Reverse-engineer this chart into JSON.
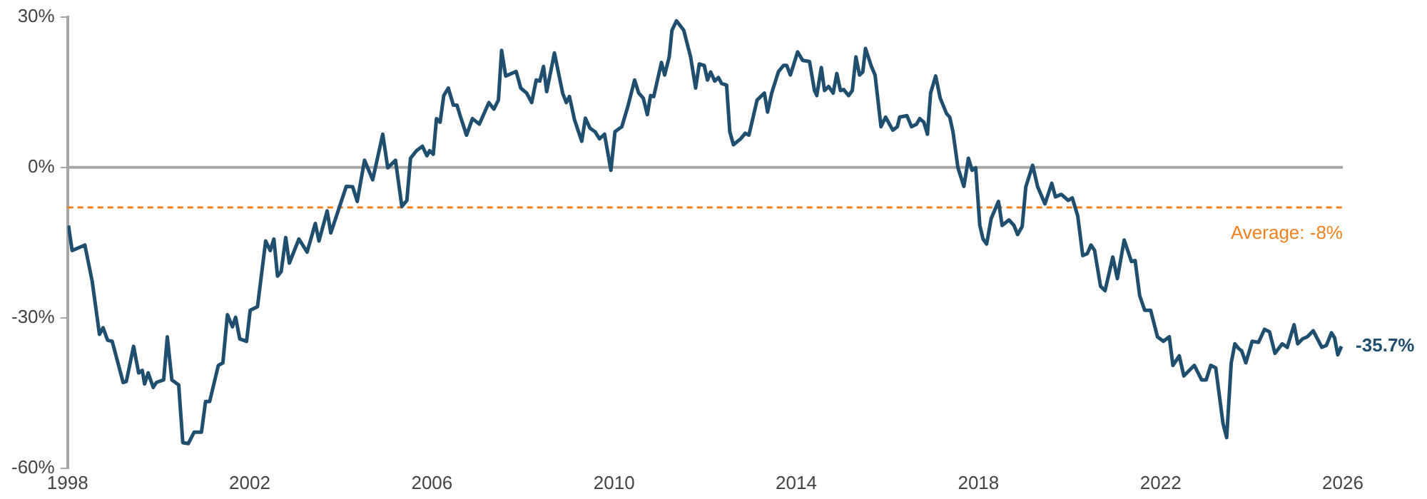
{
  "chart_data": {
    "type": "line",
    "x": [
      1998.02,
      1998.1,
      1998.38,
      1998.54,
      1998.7,
      1998.78,
      1998.88,
      1998.98,
      1999.22,
      1999.29,
      1999.45,
      1999.56,
      1999.64,
      1999.69,
      1999.77,
      1999.88,
      1999.95,
      2000.11,
      2000.19,
      2000.29,
      2000.44,
      2000.53,
      2000.65,
      2000.78,
      2000.94,
      2001.03,
      2001.12,
      2001.31,
      2001.41,
      2001.51,
      2001.62,
      2001.69,
      2001.78,
      2001.93,
      2002.01,
      2002.17,
      2002.35,
      2002.45,
      2002.53,
      2002.61,
      2002.69,
      2002.79,
      2002.87,
      2003.08,
      2003.26,
      2003.44,
      2003.52,
      2003.7,
      2003.78,
      2004.12,
      2004.26,
      2004.36,
      2004.52,
      2004.7,
      2004.92,
      2005.03,
      2005.2,
      2005.34,
      2005.45,
      2005.53,
      2005.66,
      2005.79,
      2005.89,
      2005.95,
      2006.03,
      2006.1,
      2006.18,
      2006.26,
      2006.36,
      2006.47,
      2006.55,
      2006.63,
      2006.76,
      2006.89,
      2007.04,
      2007.25,
      2007.36,
      2007.46,
      2007.53,
      2007.62,
      2007.85,
      2007.95,
      2008.08,
      2008.19,
      2008.29,
      2008.37,
      2008.45,
      2008.52,
      2008.69,
      2008.87,
      2008.95,
      2009.02,
      2009.13,
      2009.29,
      2009.37,
      2009.47,
      2009.58,
      2009.68,
      2009.79,
      2009.93,
      2010.02,
      2010.17,
      2010.31,
      2010.45,
      2010.54,
      2010.64,
      2010.73,
      2010.8,
      2010.87,
      2011.04,
      2011.11,
      2011.21,
      2011.27,
      2011.37,
      2011.53,
      2011.68,
      2011.79,
      2011.87,
      2011.98,
      2012.05,
      2012.12,
      2012.21,
      2012.29,
      2012.36,
      2012.47,
      2012.54,
      2012.62,
      2012.78,
      2012.88,
      2012.96,
      2013.14,
      2013.3,
      2013.37,
      2013.46,
      2013.61,
      2013.72,
      2013.79,
      2013.87,
      2014.03,
      2014.14,
      2014.29,
      2014.4,
      2014.45,
      2014.55,
      2014.62,
      2014.71,
      2014.81,
      2014.89,
      2014.97,
      2015.04,
      2015.15,
      2015.23,
      2015.31,
      2015.39,
      2015.46,
      2015.52,
      2015.65,
      2015.73,
      2015.86,
      2015.96,
      2016.12,
      2016.22,
      2016.27,
      2016.43,
      2016.53,
      2016.64,
      2016.71,
      2016.8,
      2016.88,
      2016.95,
      2017.06,
      2017.16,
      2017.3,
      2017.37,
      2017.44,
      2017.55,
      2017.68,
      2017.78,
      2017.86,
      2017.94,
      2018.03,
      2018.1,
      2018.18,
      2018.28,
      2018.44,
      2018.52,
      2018.67,
      2018.78,
      2018.86,
      2018.96,
      2019.04,
      2019.19,
      2019.3,
      2019.46,
      2019.61,
      2019.69,
      2019.82,
      2019.97,
      2020.06,
      2020.18,
      2020.29,
      2020.39,
      2020.47,
      2020.55,
      2020.68,
      2020.78,
      2020.95,
      2021.05,
      2021.2,
      2021.36,
      2021.44,
      2021.54,
      2021.65,
      2021.78,
      2021.93,
      2022.06,
      2022.19,
      2022.27,
      2022.41,
      2022.51,
      2022.74,
      2022.9,
      2023.0,
      2023.1,
      2023.21,
      2023.37,
      2023.45,
      2023.55,
      2023.63,
      2023.71,
      2023.78,
      2023.87,
      2024.01,
      2024.15,
      2024.28,
      2024.39,
      2024.51,
      2024.67,
      2024.78,
      2024.93,
      2025.01,
      2025.12,
      2025.22,
      2025.35,
      2025.54,
      2025.64,
      2025.75,
      2025.82,
      2025.89,
      2025.97
    ],
    "series": [
      {
        "color": "#1f4e6e",
        "values": [
          -11.6,
          -16.6,
          -15.5,
          -22.7,
          -33.3,
          -32,
          -34.5,
          -34.7,
          -42.9,
          -42.7,
          -35.7,
          -41,
          -40.5,
          -43.2,
          -41,
          -43.9,
          -42.9,
          -42.4,
          -33.8,
          -42.4,
          -43.4,
          -54.9,
          -55.1,
          -52.8,
          -52.8,
          -46.7,
          -46.7,
          -39.5,
          -39,
          -29.4,
          -31.8,
          -29.9,
          -34.2,
          -34.7,
          -28.5,
          -27.8,
          -14.7,
          -16.6,
          -14.3,
          -21.7,
          -20.8,
          -14,
          -19.1,
          -14.3,
          -16.9,
          -11.2,
          -14.7,
          -8.7,
          -13.1,
          -3.8,
          -3.9,
          -6.8,
          1.4,
          -2.5,
          6.6,
          -0.1,
          1.4,
          -7.8,
          -6.6,
          1.8,
          3.3,
          4.2,
          2.3,
          3.3,
          2.6,
          9.7,
          9,
          14.3,
          15.8,
          12.4,
          12.4,
          10,
          6.4,
          9.7,
          8.6,
          12.9,
          11.6,
          13.4,
          23.3,
          18.2,
          19.1,
          15.8,
          14.8,
          12.9,
          17.4,
          17.2,
          20.1,
          15.1,
          22.8,
          14.8,
          12.9,
          14.1,
          9.5,
          5.2,
          9.8,
          7.8,
          7.1,
          5.7,
          6.6,
          -0.6,
          7.1,
          8.1,
          12.4,
          17.4,
          14.8,
          13.8,
          10.5,
          14.3,
          14.1,
          20.9,
          18.4,
          22,
          27.3,
          29.2,
          27.3,
          22,
          15.8,
          20.6,
          20.3,
          17.4,
          19,
          17.2,
          17.9,
          16.7,
          16.4,
          7.1,
          4.5,
          5.7,
          6.8,
          6.4,
          13.4,
          14.8,
          11,
          14.8,
          19.1,
          20.3,
          20.3,
          18.4,
          23,
          21.3,
          21.1,
          15.3,
          14.3,
          19.9,
          15.3,
          16.1,
          14.8,
          18.7,
          15.3,
          15.5,
          14.3,
          15.3,
          22,
          18.4,
          19,
          23.7,
          20.1,
          18.4,
          8.1,
          10,
          7.4,
          8.1,
          10,
          10.3,
          8.1,
          8.6,
          9.7,
          9,
          6.6,
          14.8,
          18.2,
          13.8,
          10.7,
          10,
          7.1,
          -0.1,
          -3.8,
          1.8,
          -0.6,
          -0.1,
          -11.6,
          -14.3,
          -15.3,
          -10.2,
          -6.8,
          -11.6,
          -10.5,
          -11.6,
          -13.4,
          -11.8,
          -3.9,
          0.4,
          -3.9,
          -7.3,
          -3.2,
          -5.9,
          -5.4,
          -6.6,
          -6.1,
          -9.7,
          -17.6,
          -17.2,
          -15.5,
          -16.6,
          -23.7,
          -24.6,
          -17.9,
          -22.2,
          -14.5,
          -18.8,
          -18.6,
          -25.6,
          -28.5,
          -28.5,
          -33.8,
          -34.7,
          -33.8,
          -39.5,
          -37.6,
          -41.6,
          -39.5,
          -42.4,
          -42.4,
          -39.5,
          -40,
          -51.1,
          -53.9,
          -39,
          -35.2,
          -36.1,
          -36.6,
          -39,
          -34.7,
          -34.9,
          -32.3,
          -32.8,
          -37.1,
          -35.2,
          -35.9,
          -31.4,
          -35.2,
          -34.2,
          -33.8,
          -32.6,
          -35.9,
          -35.5,
          -33,
          -34,
          -37.4,
          -35.7
        ]
      }
    ],
    "xlim": [
      1998,
      2026
    ],
    "xticks": [
      1998,
      2002,
      2006,
      2010,
      2014,
      2018,
      2022,
      2026
    ],
    "ylim": [
      -60,
      30
    ],
    "yticks": [
      {
        "value": -60,
        "label": "-60%"
      },
      {
        "value": -30,
        "label": "-30%"
      },
      {
        "value": 0,
        "label": "0%"
      },
      {
        "value": 30,
        "label": "30%"
      }
    ],
    "ref_lines": [
      {
        "axis": "y",
        "value": 0,
        "label": null,
        "color": "#a6a6a6",
        "line_style": "solid"
      },
      {
        "axis": "y",
        "value": -8,
        "label": "Average: -8%",
        "color": "#f07f1e",
        "line_style": "dashed"
      }
    ],
    "annotations": [
      {
        "text": "-35.7%",
        "x": 2025.97,
        "y": -35.7
      }
    ]
  }
}
